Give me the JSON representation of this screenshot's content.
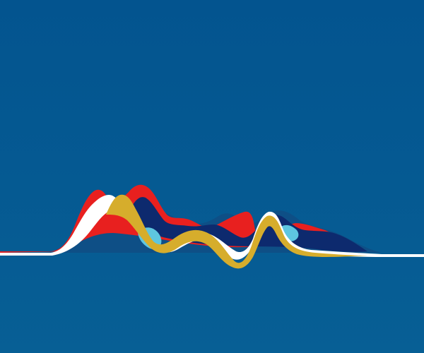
{
  "scene": {
    "description_visible_text": "",
    "colors": {
      "background_top": "#03548f",
      "background_bottom": "#075f95",
      "red": "#e8201f",
      "white": "#ffffff",
      "navy": "#0d2a6e",
      "sky": "#5ec6e0",
      "gold": "#d6ad2c",
      "teal": "#0e4f86"
    },
    "ribbon_order": [
      "teal",
      "red",
      "navy",
      "sky",
      "white",
      "gold"
    ]
  }
}
